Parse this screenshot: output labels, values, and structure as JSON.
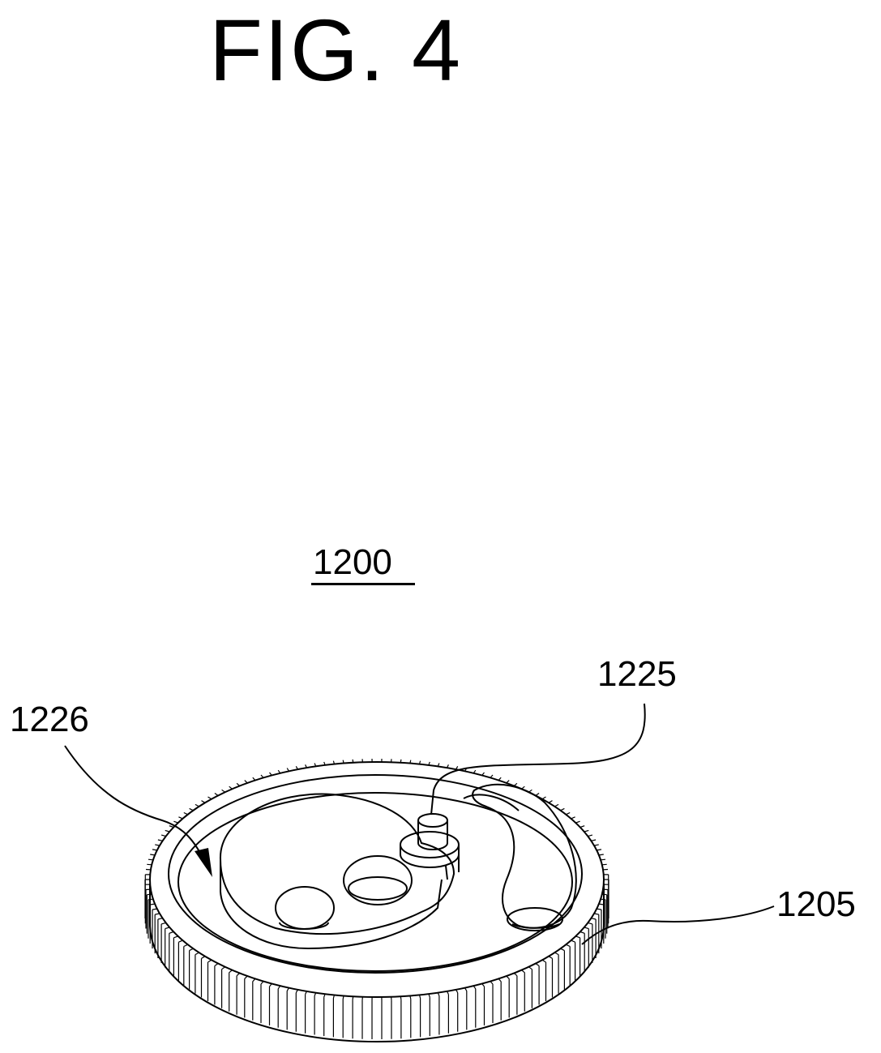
{
  "figure": {
    "title": "FIG. 4"
  },
  "labels": {
    "assembly": "1200",
    "pin": "1225",
    "cam_plate": "1226",
    "gear": "1205"
  }
}
